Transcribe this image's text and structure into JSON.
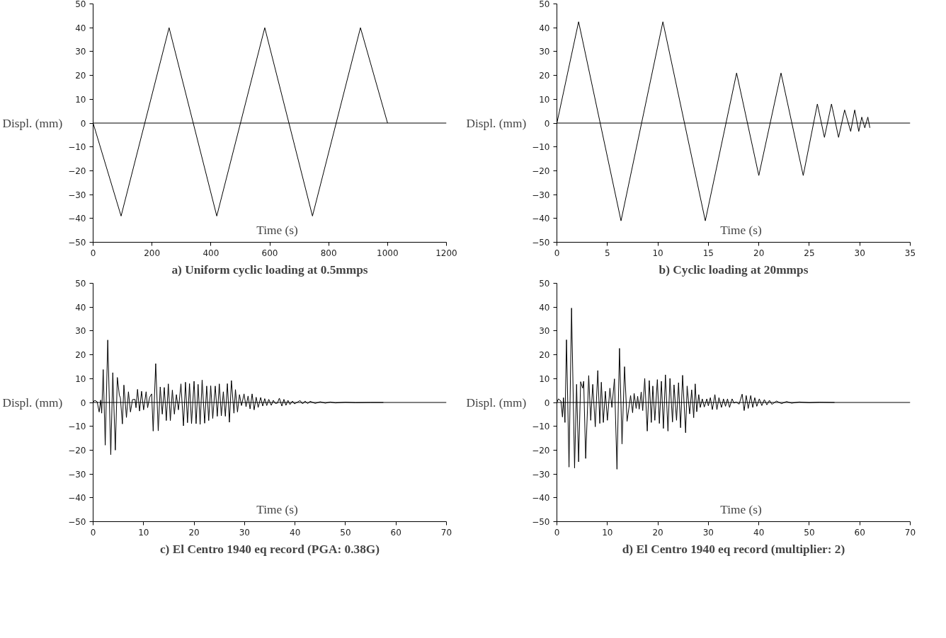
{
  "chart_data": [
    {
      "type": "line",
      "title": "a) Uniform cyclic loading at 0.5mmps",
      "xlabel": "Time (s)",
      "ylabel": "Displ. (mm)",
      "xlim": [
        0,
        1200
      ],
      "xticks": [
        0,
        200,
        400,
        600,
        800,
        1000,
        1200
      ],
      "ylim": [
        -50,
        50
      ],
      "yticks": [
        -50,
        -40,
        -30,
        -20,
        -10,
        0,
        10,
        20,
        30,
        40,
        50
      ],
      "x": [
        0,
        95,
        258,
        420,
        583,
        745,
        908,
        1000
      ],
      "ref_lines": [
        {
          "axis": "y",
          "value": 0,
          "color": "#000000"
        }
      ],
      "series": [
        {
          "color": "#000000",
          "values": [
            0,
            -39,
            40,
            -39,
            40,
            -39,
            40,
            0
          ]
        }
      ]
    },
    {
      "type": "line",
      "title": "b) Cyclic loading at 20mmps",
      "xlabel": "Time (s)",
      "ylabel": "Displ. (mm)",
      "xlim": [
        0,
        35
      ],
      "xticks": [
        0,
        5,
        10,
        15,
        20,
        25,
        30,
        35
      ],
      "ylim": [
        -50,
        50
      ],
      "yticks": [
        -50,
        -40,
        -30,
        -20,
        -10,
        0,
        10,
        20,
        30,
        40,
        50
      ],
      "x": [
        0,
        2.15,
        6.35,
        10.5,
        14.7,
        17.8,
        20,
        22.2,
        24.4,
        25.8,
        26.5,
        27.2,
        27.9,
        28.5,
        29.1,
        29.5,
        29.9,
        30.2,
        30.5,
        30.8,
        31
      ],
      "ref_lines": [
        {
          "axis": "y",
          "value": 0,
          "color": "#000000"
        }
      ],
      "series": [
        {
          "color": "#000000",
          "values": [
            0,
            42.5,
            -41,
            42.5,
            -41,
            21,
            -22,
            21,
            -22,
            8,
            -6,
            8,
            -6,
            5.5,
            -3.5,
            5.5,
            -3.5,
            2.5,
            -2,
            2.5,
            -2
          ]
        }
      ]
    },
    {
      "type": "line",
      "title": "c) El Centro 1940 eq record (PGA: 0.38G)",
      "xlabel": "Time (s)",
      "ylabel": "Displ. (mm)",
      "xlim": [
        0,
        70
      ],
      "xticks": [
        0,
        10,
        20,
        30,
        40,
        50,
        60,
        70
      ],
      "ylim": [
        -50,
        50
      ],
      "yticks": [
        -50,
        -40,
        -30,
        -20,
        -10,
        0,
        10,
        20,
        30,
        40,
        50
      ],
      "x": [
        0,
        0.3,
        0.8,
        1.2,
        1.5,
        1.7,
        2.0,
        2.4,
        2.9,
        3.5,
        3.9,
        4.4,
        4.8,
        5.2,
        5.4,
        5.8,
        6.1,
        6.6,
        7.0,
        7.4,
        7.8,
        8.3,
        8.5,
        8.8,
        9.2,
        9.6,
        10.0,
        10.5,
        10.8,
        11.2,
        11.6,
        11.9,
        12.4,
        12.9,
        13.3,
        13.7,
        14.1,
        14.5,
        14.9,
        15.3,
        15.7,
        16.1,
        16.5,
        16.9,
        17.4,
        17.9,
        18.3,
        18.7,
        19.1,
        19.5,
        20.0,
        20.4,
        20.8,
        21.2,
        21.6,
        22.1,
        22.5,
        22.9,
        23.3,
        23.7,
        24.2,
        24.6,
        25.0,
        25.4,
        25.8,
        26.2,
        26.6,
        27.0,
        27.4,
        27.9,
        28.2,
        28.6,
        29.0,
        29.4,
        29.9,
        30.3,
        30.7,
        31.1,
        31.5,
        31.9,
        32.3,
        32.7,
        33.2,
        33.6,
        34.0,
        34.4,
        34.8,
        35.3,
        35.7,
        36.1,
        36.5,
        36.9,
        37.4,
        37.8,
        38.2,
        38.6,
        39.0,
        39.5,
        39.9,
        41,
        41.5,
        42,
        42.5,
        43,
        44,
        45,
        46,
        47,
        48,
        50,
        52,
        55,
        57.5
      ],
      "ref_lines": [
        {
          "axis": "y",
          "value": 0,
          "color": "#000000"
        }
      ],
      "series": [
        {
          "color": "#000000",
          "values": [
            0,
            0.9,
            0.3,
            -4,
            1,
            -4.5,
            13.8,
            -17.9,
            26.2,
            -21.9,
            12.5,
            -20,
            10.5,
            3,
            2,
            -9,
            7.3,
            -6.3,
            4.5,
            -4,
            1.2,
            1.3,
            -2.2,
            5.5,
            -3.6,
            4.7,
            -3.1,
            4.5,
            -2.2,
            2.2,
            3.6,
            -12,
            16.3,
            -11.9,
            6.5,
            -4.9,
            6.3,
            -7.6,
            7.8,
            -7.6,
            5.2,
            -4.9,
            3.3,
            -3.1,
            7.8,
            -9.8,
            8.5,
            -8.5,
            7.9,
            -8.9,
            8.9,
            -8.9,
            7.6,
            -9.2,
            9.4,
            -8.7,
            6.9,
            -7.6,
            7,
            -6.7,
            6.9,
            -5.8,
            7.8,
            -5.6,
            4.5,
            -5.8,
            7.9,
            -8.3,
            9.2,
            -4.5,
            5.4,
            -4,
            3.3,
            -1.3,
            3.6,
            -1.8,
            2.7,
            -2.7,
            3.6,
            -3.1,
            2.2,
            -2.1,
            2.1,
            -1.5,
            1.6,
            -1.3,
            1.3,
            -1.2,
            0.9,
            -0.4,
            -0.3,
            1.8,
            -1.5,
            1.3,
            -1.2,
            0.9,
            -0.9,
            0.6,
            -0.6,
            0.8,
            -0.6,
            0.6,
            -0.5,
            0.5,
            -0.4,
            0.3,
            -0.3,
            0.2,
            -0.2,
            0.1,
            -0.1,
            0,
            0
          ]
        }
      ]
    },
    {
      "type": "line",
      "title": "d) El Centro 1940 eq record (multiplier: 2)",
      "xlabel": "Time (s)",
      "ylabel": "Displ. (mm)",
      "xlim": [
        0,
        70
      ],
      "xticks": [
        0,
        10,
        20,
        30,
        40,
        50,
        60,
        70
      ],
      "ylim": [
        -50,
        50
      ],
      "yticks": [
        -50,
        -40,
        -30,
        -20,
        -10,
        0,
        10,
        20,
        30,
        40,
        50
      ],
      "x": [
        0,
        0.3,
        0.8,
        1.1,
        1.3,
        1.6,
        1.9,
        2.4,
        2.9,
        3.5,
        3.9,
        4.3,
        4.7,
        5.1,
        5.3,
        5.7,
        6.3,
        6.7,
        7.1,
        7.6,
        8.1,
        8.5,
        8.8,
        9.2,
        9.6,
        10.0,
        10.5,
        10.9,
        11.4,
        11.9,
        12.4,
        12.9,
        13.4,
        13.9,
        14.6,
        15.0,
        15.3,
        15.7,
        16.0,
        16.3,
        16.7,
        17.0,
        17.4,
        17.9,
        18.3,
        18.7,
        19.0,
        19.4,
        19.9,
        20.3,
        20.7,
        21.1,
        21.5,
        22.0,
        22.4,
        22.9,
        23.2,
        23.7,
        24.1,
        24.5,
        24.9,
        25.5,
        25.8,
        26.3,
        26.7,
        27.1,
        27.4,
        27.7,
        28.1,
        28.4,
        28.8,
        29.2,
        29.7,
        30.0,
        30.4,
        30.8,
        31.3,
        31.7,
        32.1,
        32.6,
        33.0,
        33.4,
        33.8,
        34.2,
        34.7,
        35.1,
        35.5,
        36.1,
        36.7,
        37.1,
        37.5,
        37.9,
        38.4,
        38.8,
        39.2,
        39.6,
        40.1,
        40.6,
        41.1,
        41.6,
        42.1,
        42.6,
        43.5,
        44.5,
        45.5,
        46.5,
        48,
        50,
        52,
        55
      ],
      "ref_lines": [
        {
          "axis": "y",
          "value": 0,
          "color": "#000000"
        }
      ],
      "series": [
        {
          "color": "#000000",
          "values": [
            0,
            1.5,
            0.6,
            -6.1,
            2,
            -8.4,
            26.3,
            -27.1,
            39.6,
            -27.5,
            7.6,
            -24.9,
            8.7,
            6,
            8.9,
            -23.5,
            11.3,
            -7.5,
            7.6,
            -10.2,
            13.4,
            -8.8,
            8.5,
            -8.4,
            4.7,
            -7.5,
            6,
            -2.1,
            9.9,
            -28,
            22.7,
            -17.4,
            15,
            -7.9,
            2.9,
            -4.3,
            3.8,
            -2.5,
            2.6,
            -2.8,
            4.4,
            -3.4,
            10.1,
            -12,
            9.2,
            -8.4,
            6.9,
            -7.5,
            9.6,
            -8.8,
            8.9,
            -10.9,
            11.6,
            -12,
            10.1,
            -8.2,
            7.4,
            -7.5,
            8.3,
            -10.6,
            11.4,
            -12.7,
            6.9,
            -4.8,
            5.3,
            -6.4,
            7.8,
            -3.9,
            3.3,
            -2.1,
            1.5,
            -1.9,
            1.5,
            -1.4,
            2,
            -3,
            3.3,
            -3,
            2,
            -2.1,
            1.5,
            -1.6,
            1.5,
            -2.1,
            1.5,
            -0.3,
            0.2,
            -0.7,
            3.5,
            -3.4,
            2.9,
            -2.5,
            2.9,
            -2.1,
            2,
            -1.6,
            1.5,
            -1.3,
            1.2,
            -1,
            0.9,
            -0.8,
            0.6,
            -0.5,
            0.4,
            -0.3,
            0.2,
            -0.1,
            0.1,
            0
          ]
        }
      ]
    }
  ]
}
